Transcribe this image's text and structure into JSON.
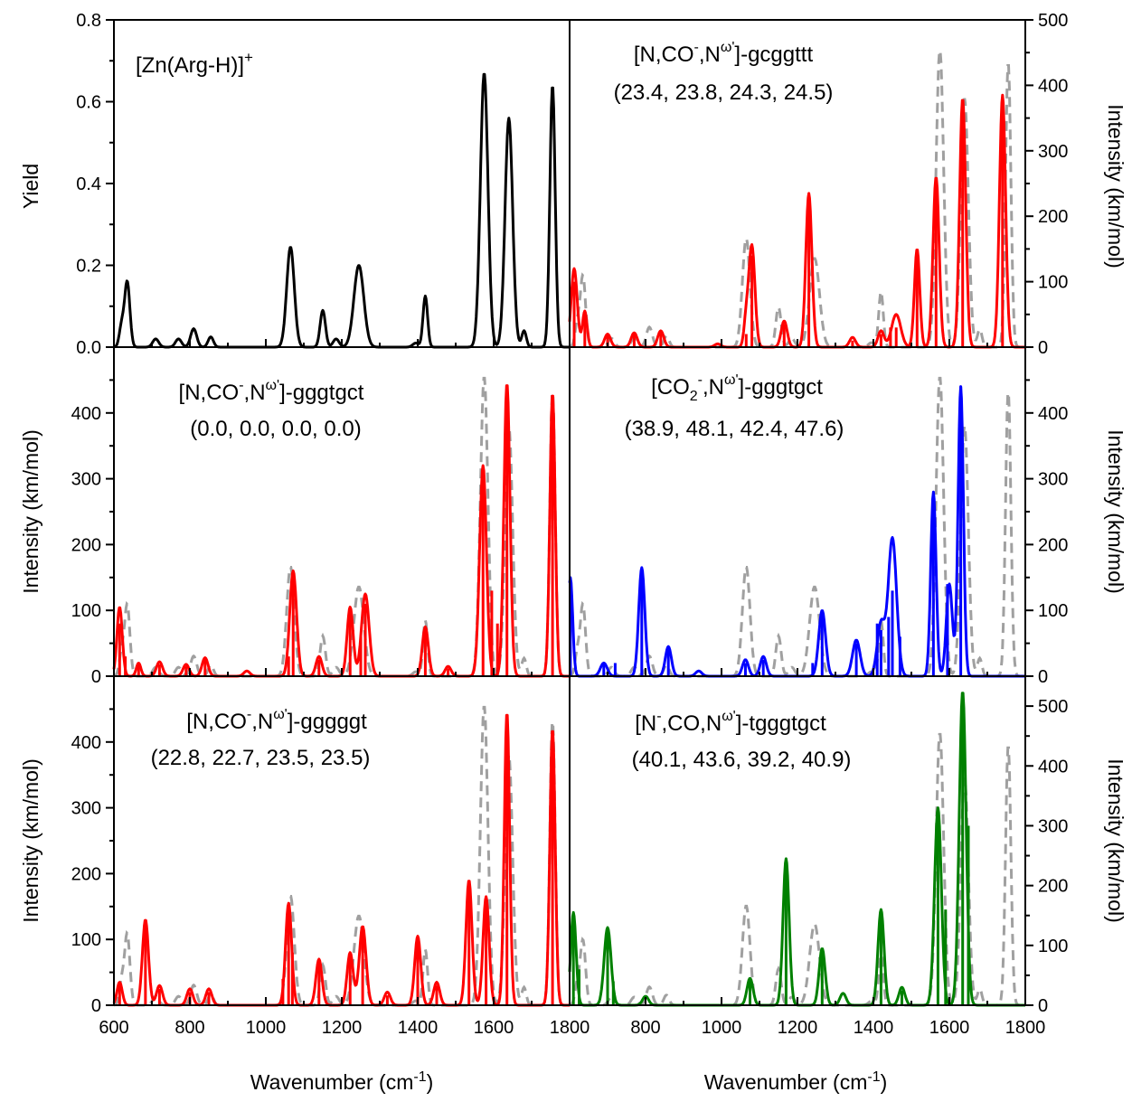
{
  "figure": {
    "xlabel_left": "Wavenumber (cm",
    "xlabel_right": "Wavenumber (cm",
    "xlabel_sup": "-1",
    "xlabel_close": ")",
    "ylabel_yield": "Yield",
    "ylabel_intensity": "Intensity (km/mol)",
    "x_ticks_left": [
      "600",
      "800",
      "1000",
      "1200",
      "1400",
      "1600",
      "1800"
    ],
    "x_ticks_right": [
      "800",
      "1000",
      "1200",
      "1400",
      "1600",
      "1800"
    ]
  },
  "panels": {
    "p1": {
      "title_main": "[Zn(Arg-H)]",
      "title_sup": "+",
      "yticks": [
        "0.0",
        "0.2",
        "0.4",
        "0.6",
        "0.8"
      ]
    },
    "p2": {
      "t_a": "[N,CO",
      "t_a_sup": "-",
      "t_b": ",N",
      "t_b_sup": "ω'",
      "t_c": "]-gcggttt",
      "subtitle": "(23.4, 23.8, 24.3, 24.5)",
      "yticks": [
        "0",
        "100",
        "200",
        "300",
        "400",
        "500"
      ]
    },
    "p3": {
      "t_a": "[N,CO",
      "t_a_sup": "-",
      "t_b": ",N",
      "t_b_sup": "ω'",
      "t_c": "]-gggtgct",
      "subtitle": "(0.0, 0.0, 0.0, 0.0)",
      "yticks": [
        "0",
        "100",
        "200",
        "300",
        "400"
      ]
    },
    "p4": {
      "t_a": "[CO",
      "t_a_sub": "2",
      "t_a_sup": "-",
      "t_b": ",N",
      "t_b_sup": "ω'",
      "t_c": "]-gggtgct",
      "subtitle": "(38.9, 48.1, 42.4, 47.6)",
      "yticks": [
        "0",
        "100",
        "200",
        "300",
        "400"
      ]
    },
    "p5": {
      "t_a": "[N,CO",
      "t_a_sup": "-",
      "t_b": ",N",
      "t_b_sup": "ω'",
      "t_c": "]-gggggt",
      "subtitle": "(22.8, 22.7, 23.5, 23.5)",
      "yticks": [
        "0",
        "100",
        "200",
        "300",
        "400"
      ]
    },
    "p6": {
      "t_a": "[N",
      "t_a_sup": "-",
      "t_b": ",CO,N",
      "t_b_sup": "ω'",
      "t_c": "]-tgggtgct",
      "subtitle": "(40.1, 43.6, 39.2, 40.9)",
      "yticks": [
        "0",
        "100",
        "200",
        "300",
        "400",
        "500"
      ]
    }
  },
  "chart_data": [
    {
      "id": "p1",
      "type": "line",
      "title": "[Zn(Arg-H)]+",
      "ylabel": "Yield",
      "xlim": [
        600,
        1800
      ],
      "ylim": [
        0,
        0.8
      ],
      "color": "#000000",
      "peaks": [
        [
          635,
          0.16,
          7
        ],
        [
          620,
          0.05,
          6
        ],
        [
          710,
          0.02,
          8
        ],
        [
          770,
          0.02,
          8
        ],
        [
          810,
          0.045,
          8
        ],
        [
          855,
          0.025,
          7
        ],
        [
          1065,
          0.245,
          10
        ],
        [
          1150,
          0.09,
          7
        ],
        [
          1185,
          0.02,
          8
        ],
        [
          1245,
          0.2,
          13
        ],
        [
          1420,
          0.125,
          6
        ],
        [
          1395,
          0.01,
          8
        ],
        [
          1575,
          0.67,
          10
        ],
        [
          1640,
          0.56,
          10
        ],
        [
          1680,
          0.04,
          6
        ],
        [
          1755,
          0.64,
          7
        ]
      ]
    },
    {
      "id": "p2",
      "type": "line",
      "title": "[N,CO-,Nω']-gcggttt",
      "ylabel": "Intensity (km/mol)",
      "xlim": [
        600,
        1800
      ],
      "ylim": [
        0,
        500
      ],
      "color": "#ff0000",
      "peaks": [
        [
          612,
          120,
          8
        ],
        [
          640,
          55,
          6
        ],
        [
          700,
          20,
          8
        ],
        [
          770,
          22,
          8
        ],
        [
          840,
          25,
          8
        ],
        [
          990,
          5,
          8
        ],
        [
          1080,
          155,
          8
        ],
        [
          1065,
          40,
          6
        ],
        [
          1165,
          40,
          8
        ],
        [
          1230,
          235,
          8
        ],
        [
          1345,
          15,
          8
        ],
        [
          1420,
          25,
          8
        ],
        [
          1460,
          50,
          12
        ],
        [
          1515,
          150,
          7
        ],
        [
          1565,
          260,
          8
        ],
        [
          1635,
          380,
          8
        ],
        [
          1740,
          385,
          8
        ]
      ],
      "sticks": [
        [
          612,
          100
        ],
        [
          640,
          50
        ],
        [
          700,
          20
        ],
        [
          770,
          20
        ],
        [
          840,
          22
        ],
        [
          1065,
          20
        ],
        [
          1080,
          140
        ],
        [
          1165,
          35
        ],
        [
          1230,
          230
        ],
        [
          1345,
          10
        ],
        [
          1420,
          20
        ],
        [
          1445,
          30
        ],
        [
          1460,
          30
        ],
        [
          1515,
          140
        ],
        [
          1565,
          250
        ],
        [
          1635,
          360
        ],
        [
          1740,
          370
        ]
      ],
      "experimental_overlay": "dashed gray"
    },
    {
      "id": "p3",
      "type": "line",
      "title": "[N,CO-,Nω']-gggtgct",
      "ylabel": "Intensity (km/mol)",
      "xlim": [
        600,
        1800
      ],
      "ylim": [
        0,
        500
      ],
      "color": "#ff0000",
      "peaks": [
        [
          615,
          105,
          7
        ],
        [
          665,
          20,
          6
        ],
        [
          720,
          22,
          8
        ],
        [
          790,
          18,
          8
        ],
        [
          840,
          28,
          8
        ],
        [
          950,
          8,
          8
        ],
        [
          1072,
          160,
          9
        ],
        [
          1140,
          30,
          8
        ],
        [
          1222,
          105,
          8
        ],
        [
          1262,
          125,
          10
        ],
        [
          1420,
          75,
          8
        ],
        [
          1480,
          15,
          8
        ],
        [
          1572,
          320,
          9
        ],
        [
          1635,
          445,
          8
        ],
        [
          1755,
          430,
          7
        ]
      ],
      "sticks": [
        [
          615,
          80
        ],
        [
          630,
          30
        ],
        [
          665,
          20
        ],
        [
          720,
          18
        ],
        [
          790,
          15
        ],
        [
          840,
          25
        ],
        [
          1060,
          30
        ],
        [
          1072,
          160
        ],
        [
          1140,
          25
        ],
        [
          1222,
          95
        ],
        [
          1250,
          60
        ],
        [
          1262,
          110
        ],
        [
          1420,
          70
        ],
        [
          1480,
          12
        ],
        [
          1572,
          310
        ],
        [
          1595,
          130
        ],
        [
          1610,
          80
        ],
        [
          1635,
          440
        ],
        [
          1755,
          425
        ]
      ],
      "experimental_overlay": "dashed gray"
    },
    {
      "id": "p4",
      "type": "line",
      "title": "[CO2-,Nω']-gggtgct",
      "ylabel": "Intensity (km/mol)",
      "xlim": [
        600,
        1800
      ],
      "ylim": [
        0,
        500
      ],
      "color": "#0000ff",
      "peaks": [
        [
          602,
          150,
          6
        ],
        [
          690,
          20,
          9
        ],
        [
          790,
          165,
          8
        ],
        [
          860,
          45,
          8
        ],
        [
          940,
          8,
          8
        ],
        [
          1063,
          25,
          8
        ],
        [
          1110,
          30,
          8
        ],
        [
          1265,
          100,
          9
        ],
        [
          1355,
          55,
          10
        ],
        [
          1420,
          80,
          10
        ],
        [
          1450,
          210,
          11
        ],
        [
          1558,
          280,
          7
        ],
        [
          1600,
          140,
          8
        ],
        [
          1630,
          440,
          7
        ]
      ],
      "sticks": [
        [
          602,
          150
        ],
        [
          690,
          18
        ],
        [
          720,
          20
        ],
        [
          790,
          160
        ],
        [
          860,
          40
        ],
        [
          1063,
          20
        ],
        [
          1110,
          25
        ],
        [
          1240,
          20
        ],
        [
          1265,
          95
        ],
        [
          1355,
          50
        ],
        [
          1410,
          80
        ],
        [
          1420,
          70
        ],
        [
          1440,
          90
        ],
        [
          1450,
          130
        ],
        [
          1470,
          60
        ],
        [
          1558,
          270
        ],
        [
          1595,
          140
        ],
        [
          1630,
          440
        ]
      ],
      "experimental_overlay": "dashed gray"
    },
    {
      "id": "p5",
      "type": "line",
      "title": "[N,CO-,Nω']-gggggt",
      "ylabel": "Intensity (km/mol)",
      "xlim": [
        600,
        1800
      ],
      "ylim": [
        0,
        500
      ],
      "color": "#ff0000",
      "peaks": [
        [
          615,
          35,
          7
        ],
        [
          683,
          130,
          8
        ],
        [
          720,
          30,
          8
        ],
        [
          800,
          25,
          8
        ],
        [
          850,
          25,
          8
        ],
        [
          1060,
          155,
          8
        ],
        [
          1140,
          70,
          8
        ],
        [
          1222,
          80,
          8
        ],
        [
          1255,
          120,
          9
        ],
        [
          1320,
          20,
          8
        ],
        [
          1400,
          105,
          8
        ],
        [
          1450,
          35,
          8
        ],
        [
          1535,
          190,
          8
        ],
        [
          1580,
          165,
          8
        ],
        [
          1635,
          445,
          7
        ],
        [
          1755,
          420,
          7
        ]
      ],
      "sticks": [
        [
          615,
          30
        ],
        [
          683,
          120
        ],
        [
          720,
          25
        ],
        [
          800,
          20
        ],
        [
          850,
          20
        ],
        [
          1045,
          40
        ],
        [
          1060,
          150
        ],
        [
          1070,
          80
        ],
        [
          1140,
          65
        ],
        [
          1222,
          75
        ],
        [
          1255,
          115
        ],
        [
          1320,
          15
        ],
        [
          1400,
          100
        ],
        [
          1450,
          30
        ],
        [
          1535,
          180
        ],
        [
          1580,
          160
        ],
        [
          1635,
          440
        ],
        [
          1755,
          415
        ]
      ],
      "experimental_overlay": "dashed gray"
    },
    {
      "id": "p6",
      "type": "line",
      "title": "[N-,CO,Nω']-tgggtgct",
      "ylabel": "Intensity (km/mol)",
      "xlim": [
        600,
        1800
      ],
      "ylim": [
        0,
        550
      ],
      "color": "#008000",
      "peaks": [
        [
          610,
          155,
          7
        ],
        [
          700,
          130,
          9
        ],
        [
          800,
          15,
          8
        ],
        [
          1075,
          45,
          8
        ],
        [
          1170,
          245,
          8
        ],
        [
          1265,
          95,
          8
        ],
        [
          1320,
          20,
          8
        ],
        [
          1420,
          160,
          8
        ],
        [
          1475,
          30,
          8
        ],
        [
          1570,
          330,
          9
        ],
        [
          1635,
          525,
          9
        ]
      ],
      "sticks": [
        [
          610,
          150
        ],
        [
          625,
          60
        ],
        [
          700,
          125
        ],
        [
          715,
          40
        ],
        [
          1075,
          40
        ],
        [
          1170,
          240
        ],
        [
          1265,
          90
        ],
        [
          1420,
          155
        ],
        [
          1475,
          25
        ],
        [
          1570,
          320
        ],
        [
          1590,
          160
        ],
        [
          1635,
          500
        ],
        [
          1650,
          300
        ]
      ],
      "experimental_overlay": "dashed gray"
    }
  ]
}
